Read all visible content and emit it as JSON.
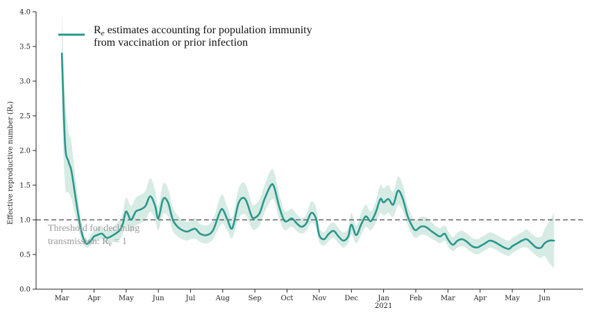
{
  "chart_data": {
    "type": "line",
    "ylabel": "Effective reproductive number (Rₑ)",
    "ylim": [
      0,
      4.0
    ],
    "y_ticks": [
      "0.0",
      "0.5",
      "1.0",
      "1.5",
      "2.0",
      "2.5",
      "3.0",
      "3.5",
      "4.0"
    ],
    "x_ticks": [
      {
        "label": "Mar",
        "month": 0
      },
      {
        "label": "Apr",
        "month": 1
      },
      {
        "label": "May",
        "month": 2
      },
      {
        "label": "Jun",
        "month": 3
      },
      {
        "label": "Jul",
        "month": 4
      },
      {
        "label": "Aug",
        "month": 5
      },
      {
        "label": "Sep",
        "month": 6
      },
      {
        "label": "Oct",
        "month": 7
      },
      {
        "label": "Nov",
        "month": 8
      },
      {
        "label": "Dec",
        "month": 9
      },
      {
        "label": "Jan",
        "month": 10,
        "sublabel": "2021"
      },
      {
        "label": "Feb",
        "month": 11
      },
      {
        "label": "Mar",
        "month": 12
      },
      {
        "label": "Apr",
        "month": 13
      },
      {
        "label": "May",
        "month": 14
      },
      {
        "label": "Jun",
        "month": 15
      }
    ],
    "xlim_months": [
      -0.8,
      16.2
    ],
    "legend": {
      "position": "top-left",
      "label_main": "R",
      "label_sub": "e",
      "label_line1_rest": " estimates accounting for population immunity",
      "label_line2": "from vaccination or prior infection"
    },
    "threshold": {
      "y": 1.0,
      "label_line1": "Threshold for declining",
      "label_line2_main": "transmission: R",
      "label_line2_sub": "e",
      "label_line2_rest": " = 1"
    },
    "colors": {
      "line": "#2a968c",
      "band": "#cfe8de",
      "threshold": "#666666",
      "axis": "#222222"
    },
    "series": [
      {
        "x": [
          0.0,
          0.1,
          0.2,
          0.3,
          0.45,
          0.6,
          0.75,
          0.9,
          1.0,
          1.1,
          1.25,
          1.4,
          1.6,
          1.8,
          1.9,
          2.0,
          2.15,
          2.3,
          2.45,
          2.6,
          2.75,
          2.9,
          3.0,
          3.15,
          3.3,
          3.45,
          3.6,
          3.75,
          3.9,
          4.0,
          4.15,
          4.3,
          4.5,
          4.7,
          4.9,
          5.0,
          5.15,
          5.3,
          5.5,
          5.7,
          5.9,
          6.0,
          6.15,
          6.3,
          6.5,
          6.6,
          6.75,
          6.9,
          7.0,
          7.15,
          7.3,
          7.45,
          7.6,
          7.75,
          7.9,
          8.0,
          8.15,
          8.3,
          8.45,
          8.6,
          8.75,
          8.9,
          9.0,
          9.15,
          9.3,
          9.45,
          9.6,
          9.75,
          9.9,
          10.0,
          10.15,
          10.3,
          10.45,
          10.6,
          10.75,
          10.9,
          11.0,
          11.15,
          11.3,
          11.45,
          11.6,
          11.75,
          11.9,
          12.0,
          12.15,
          12.3,
          12.45,
          12.6,
          12.75,
          12.9,
          13.0,
          13.15,
          13.3,
          13.45,
          13.6,
          13.75,
          13.9,
          14.0,
          14.15,
          14.3,
          14.45,
          14.6,
          14.75,
          14.9,
          15.0,
          15.15,
          15.3
        ],
        "values": [
          3.4,
          2.1,
          1.85,
          1.7,
          1.25,
          0.85,
          0.66,
          0.7,
          0.76,
          0.78,
          0.8,
          0.74,
          0.78,
          0.85,
          0.95,
          1.12,
          1.0,
          1.12,
          1.15,
          1.2,
          1.34,
          1.2,
          1.02,
          1.3,
          1.25,
          1.0,
          0.9,
          0.85,
          0.83,
          0.85,
          0.87,
          0.8,
          0.78,
          0.85,
          1.1,
          1.15,
          1.0,
          0.88,
          1.25,
          1.3,
          1.05,
          1.03,
          1.1,
          1.3,
          1.5,
          1.47,
          1.2,
          1.0,
          0.98,
          1.02,
          0.95,
          0.9,
          0.95,
          1.1,
          1.02,
          0.78,
          0.72,
          0.8,
          0.84,
          0.76,
          0.7,
          0.76,
          0.93,
          0.78,
          0.93,
          1.05,
          0.98,
          1.1,
          1.3,
          1.25,
          1.3,
          1.22,
          1.42,
          1.3,
          1.05,
          0.9,
          0.85,
          0.9,
          0.9,
          0.85,
          0.8,
          0.76,
          0.8,
          0.72,
          0.64,
          0.7,
          0.72,
          0.68,
          0.62,
          0.6,
          0.62,
          0.66,
          0.7,
          0.68,
          0.64,
          0.6,
          0.58,
          0.62,
          0.66,
          0.7,
          0.72,
          0.66,
          0.6,
          0.6,
          0.66,
          0.7,
          0.7
        ],
        "lower": [
          2.6,
          1.5,
          1.4,
          1.3,
          1.0,
          0.72,
          0.6,
          0.63,
          0.68,
          0.7,
          0.72,
          0.66,
          0.68,
          0.72,
          0.8,
          0.92,
          0.82,
          0.92,
          0.95,
          1.0,
          1.12,
          1.0,
          0.85,
          1.08,
          1.05,
          0.84,
          0.76,
          0.72,
          0.7,
          0.72,
          0.73,
          0.68,
          0.66,
          0.72,
          0.9,
          0.95,
          0.84,
          0.74,
          1.02,
          1.08,
          0.88,
          0.86,
          0.92,
          1.1,
          1.28,
          1.28,
          1.02,
          0.86,
          0.86,
          0.9,
          0.84,
          0.8,
          0.84,
          0.96,
          0.88,
          0.68,
          0.63,
          0.7,
          0.74,
          0.66,
          0.6,
          0.66,
          0.78,
          0.66,
          0.78,
          0.9,
          0.85,
          0.95,
          1.1,
          1.06,
          1.1,
          1.04,
          1.22,
          1.12,
          0.92,
          0.78,
          0.74,
          0.78,
          0.78,
          0.74,
          0.7,
          0.66,
          0.7,
          0.62,
          0.55,
          0.6,
          0.62,
          0.58,
          0.53,
          0.5,
          0.52,
          0.56,
          0.6,
          0.58,
          0.54,
          0.5,
          0.48,
          0.52,
          0.56,
          0.6,
          0.6,
          0.54,
          0.48,
          0.45,
          0.48,
          0.38,
          0.3
        ],
        "upper": [
          4.0,
          2.8,
          2.3,
          2.1,
          1.5,
          1.0,
          0.72,
          0.78,
          0.85,
          0.88,
          0.9,
          0.84,
          0.9,
          1.0,
          1.12,
          1.32,
          1.2,
          1.32,
          1.36,
          1.42,
          1.6,
          1.42,
          1.2,
          1.52,
          1.45,
          1.18,
          1.06,
          1.0,
          0.97,
          0.99,
          1.02,
          0.94,
          0.92,
          1.0,
          1.3,
          1.36,
          1.18,
          1.04,
          1.46,
          1.52,
          1.24,
          1.22,
          1.3,
          1.5,
          1.72,
          1.68,
          1.38,
          1.15,
          1.12,
          1.16,
          1.08,
          1.02,
          1.08,
          1.26,
          1.18,
          0.9,
          0.82,
          0.92,
          0.96,
          0.88,
          0.82,
          0.88,
          1.1,
          0.92,
          1.1,
          1.22,
          1.12,
          1.26,
          1.5,
          1.45,
          1.5,
          1.4,
          1.62,
          1.5,
          1.2,
          1.04,
          0.98,
          1.04,
          1.04,
          0.98,
          0.92,
          0.88,
          0.92,
          0.84,
          0.75,
          0.82,
          0.84,
          0.8,
          0.74,
          0.72,
          0.74,
          0.78,
          0.82,
          0.8,
          0.76,
          0.72,
          0.7,
          0.74,
          0.78,
          0.82,
          0.86,
          0.8,
          0.75,
          0.76,
          0.86,
          0.98,
          1.1
        ]
      }
    ]
  }
}
